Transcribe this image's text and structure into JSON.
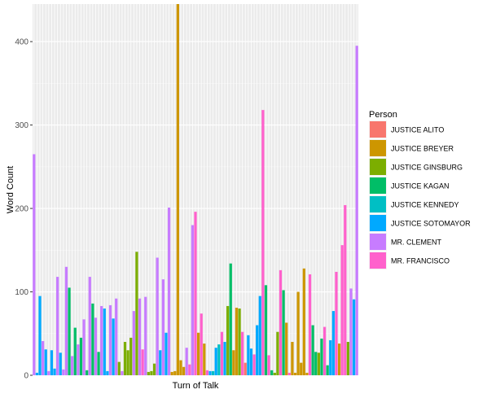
{
  "chart_data": {
    "type": "bar",
    "xlabel": "Turn of Talk",
    "ylabel": "Word Count",
    "ylim": [
      0,
      445
    ],
    "y_ticks": [
      "0",
      "100",
      "200",
      "300",
      "400"
    ],
    "x_tick_labels": "hidden",
    "grid": true,
    "legend_position": "right",
    "legend_title": "Person",
    "series": [
      {
        "name": "JUSTICE ALITO",
        "color": "#F8766D"
      },
      {
        "name": "JUSTICE BREYER",
        "color": "#CD9600"
      },
      {
        "name": "JUSTICE GINSBURG",
        "color": "#7CAE00"
      },
      {
        "name": "JUSTICE KAGAN",
        "color": "#00BE67"
      },
      {
        "name": "JUSTICE KENNEDY",
        "color": "#00BFC4"
      },
      {
        "name": "JUSTICE SOTOMAYOR",
        "color": "#00A9FF"
      },
      {
        "name": "MR. CLEMENT",
        "color": "#C77CFF"
      },
      {
        "name": "MR. FRANCISCO",
        "color": "#FF61CC"
      }
    ],
    "bars": [
      {
        "person": "MR. CLEMENT",
        "value": 265
      },
      {
        "person": "JUSTICE SOTOMAYOR",
        "value": 3
      },
      {
        "person": "JUSTICE SOTOMAYOR",
        "value": 95
      },
      {
        "person": "MR. CLEMENT",
        "value": 41
      },
      {
        "person": "JUSTICE SOTOMAYOR",
        "value": 31
      },
      {
        "person": "MR. CLEMENT",
        "value": 5
      },
      {
        "person": "JUSTICE SOTOMAYOR",
        "value": 30
      },
      {
        "person": "JUSTICE SOTOMAYOR",
        "value": 8
      },
      {
        "person": "MR. CLEMENT",
        "value": 118
      },
      {
        "person": "JUSTICE SOTOMAYOR",
        "value": 27
      },
      {
        "person": "MR. CLEMENT",
        "value": 7
      },
      {
        "person": "MR. CLEMENT",
        "value": 130
      },
      {
        "person": "JUSTICE KAGAN",
        "value": 105
      },
      {
        "person": "MR. CLEMENT",
        "value": 23
      },
      {
        "person": "JUSTICE KAGAN",
        "value": 57
      },
      {
        "person": "MR. CLEMENT",
        "value": 37
      },
      {
        "person": "JUSTICE KAGAN",
        "value": 45
      },
      {
        "person": "MR. CLEMENT",
        "value": 67
      },
      {
        "person": "JUSTICE KAGAN",
        "value": 6
      },
      {
        "person": "MR. CLEMENT",
        "value": 118
      },
      {
        "person": "JUSTICE KAGAN",
        "value": 86
      },
      {
        "person": "MR. CLEMENT",
        "value": 69
      },
      {
        "person": "JUSTICE KAGAN",
        "value": 28
      },
      {
        "person": "MR. CLEMENT",
        "value": 83
      },
      {
        "person": "JUSTICE SOTOMAYOR",
        "value": 80
      },
      {
        "person": "JUSTICE SOTOMAYOR",
        "value": 5
      },
      {
        "person": "MR. CLEMENT",
        "value": 84
      },
      {
        "person": "JUSTICE SOTOMAYOR",
        "value": 68
      },
      {
        "person": "MR. CLEMENT",
        "value": 92
      },
      {
        "person": "JUSTICE GINSBURG",
        "value": 16
      },
      {
        "person": "MR. CLEMENT",
        "value": 5
      },
      {
        "person": "JUSTICE GINSBURG",
        "value": 40
      },
      {
        "person": "JUSTICE GINSBURG",
        "value": 30
      },
      {
        "person": "JUSTICE GINSBURG",
        "value": 45
      },
      {
        "person": "MR. CLEMENT",
        "value": 77
      },
      {
        "person": "JUSTICE GINSBURG",
        "value": 148
      },
      {
        "person": "MR. CLEMENT",
        "value": 92
      },
      {
        "person": "MR. FRANCISCO",
        "value": 31
      },
      {
        "person": "MR. CLEMENT",
        "value": 94
      },
      {
        "person": "JUSTICE GINSBURG",
        "value": 4
      },
      {
        "person": "JUSTICE GINSBURG",
        "value": 5
      },
      {
        "person": "JUSTICE GINSBURG",
        "value": 14
      },
      {
        "person": "MR. CLEMENT",
        "value": 141
      },
      {
        "person": "JUSTICE SOTOMAYOR",
        "value": 30
      },
      {
        "person": "MR. CLEMENT",
        "value": 115
      },
      {
        "person": "JUSTICE SOTOMAYOR",
        "value": 51
      },
      {
        "person": "MR. CLEMENT",
        "value": 201
      },
      {
        "person": "JUSTICE BREYER",
        "value": 4
      },
      {
        "person": "JUSTICE BREYER",
        "value": 5
      },
      {
        "person": "JUSTICE BREYER",
        "value": 445
      },
      {
        "person": "JUSTICE BREYER",
        "value": 18
      },
      {
        "person": "JUSTICE BREYER",
        "value": 10
      },
      {
        "person": "MR. CLEMENT",
        "value": 33
      },
      {
        "person": "MR. FRANCISCO",
        "value": 13
      },
      {
        "person": "MR. CLEMENT",
        "value": 180
      },
      {
        "person": "MR. FRANCISCO",
        "value": 196
      },
      {
        "person": "JUSTICE BREYER",
        "value": 51
      },
      {
        "person": "MR. FRANCISCO",
        "value": 74
      },
      {
        "person": "JUSTICE BREYER",
        "value": 38
      },
      {
        "person": "MR. FRANCISCO",
        "value": 6
      },
      {
        "person": "JUSTICE SOTOMAYOR",
        "value": 5
      },
      {
        "person": "JUSTICE KENNEDY",
        "value": 5
      },
      {
        "person": "JUSTICE SOTOMAYOR",
        "value": 33
      },
      {
        "person": "JUSTICE KENNEDY",
        "value": 37
      },
      {
        "person": "MR. FRANCISCO",
        "value": 52
      },
      {
        "person": "JUSTICE SOTOMAYOR",
        "value": 40
      },
      {
        "person": "JUSTICE GINSBURG",
        "value": 83
      },
      {
        "person": "JUSTICE KAGAN",
        "value": 134
      },
      {
        "person": "JUSTICE BREYER",
        "value": 30
      },
      {
        "person": "JUSTICE BREYER",
        "value": 81
      },
      {
        "person": "JUSTICE GINSBURG",
        "value": 80
      },
      {
        "person": "MR. FRANCISCO",
        "value": 52
      },
      {
        "person": "JUSTICE ALITO",
        "value": 15
      },
      {
        "person": "JUSTICE SOTOMAYOR",
        "value": 48
      },
      {
        "person": "JUSTICE SOTOMAYOR",
        "value": 32
      },
      {
        "person": "MR. FRANCISCO",
        "value": 25
      },
      {
        "person": "JUSTICE SOTOMAYOR",
        "value": 60
      },
      {
        "person": "JUSTICE SOTOMAYOR",
        "value": 95
      },
      {
        "person": "MR. FRANCISCO",
        "value": 318
      },
      {
        "person": "JUSTICE KAGAN",
        "value": 108
      },
      {
        "person": "MR. FRANCISCO",
        "value": 24
      },
      {
        "person": "JUSTICE KAGAN",
        "value": 6
      },
      {
        "person": "JUSTICE GINSBURG",
        "value": 3
      },
      {
        "person": "JUSTICE GINSBURG",
        "value": 52
      },
      {
        "person": "MR. FRANCISCO",
        "value": 126
      },
      {
        "person": "JUSTICE KAGAN",
        "value": 102
      },
      {
        "person": "JUSTICE BREYER",
        "value": 63
      },
      {
        "person": "MR. FRANCISCO",
        "value": 3
      },
      {
        "person": "JUSTICE BREYER",
        "value": 40
      },
      {
        "person": "JUSTICE BREYER",
        "value": 3
      },
      {
        "person": "JUSTICE BREYER",
        "value": 100
      },
      {
        "person": "JUSTICE BREYER",
        "value": 15
      },
      {
        "person": "JUSTICE BREYER",
        "value": 128
      },
      {
        "person": "JUSTICE BREYER",
        "value": 3
      },
      {
        "person": "MR. FRANCISCO",
        "value": 121
      },
      {
        "person": "JUSTICE KAGAN",
        "value": 60
      },
      {
        "person": "JUSTICE KAGAN",
        "value": 28
      },
      {
        "person": "JUSTICE GINSBURG",
        "value": 27
      },
      {
        "person": "JUSTICE KAGAN",
        "value": 44
      },
      {
        "person": "MR. FRANCISCO",
        "value": 58
      },
      {
        "person": "JUSTICE KAGAN",
        "value": 12
      },
      {
        "person": "JUSTICE SOTOMAYOR",
        "value": 42
      },
      {
        "person": "JUSTICE SOTOMAYOR",
        "value": 77
      },
      {
        "person": "MR. FRANCISCO",
        "value": 124
      },
      {
        "person": "JUSTICE BREYER",
        "value": 38
      },
      {
        "person": "MR. FRANCISCO",
        "value": 156
      },
      {
        "person": "MR. FRANCISCO",
        "value": 204
      },
      {
        "person": "JUSTICE GINSBURG",
        "value": 40
      },
      {
        "person": "MR. CLEMENT",
        "value": 104
      },
      {
        "person": "JUSTICE SOTOMAYOR",
        "value": 91
      },
      {
        "person": "MR. CLEMENT",
        "value": 395
      }
    ]
  }
}
